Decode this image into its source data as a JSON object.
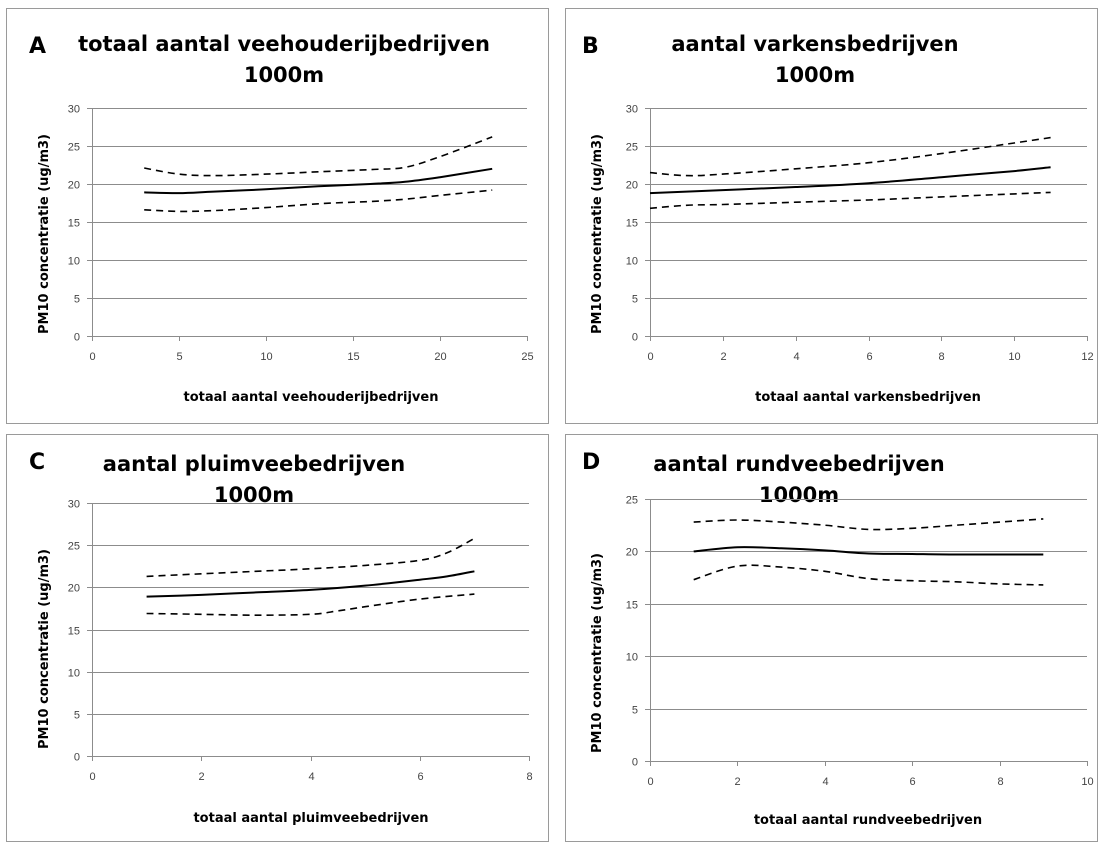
{
  "chart_data": [
    {
      "type": "line",
      "panel_label": "A",
      "title_lines": [
        "totaal aantal veehouderijbedrijven",
        "1000m"
      ],
      "xlabel": "totaal aantal veehouderijbedrijven",
      "ylabel": "PM10 concentratie (ug/m3)",
      "xlim": [
        0,
        25
      ],
      "xticks": [
        0,
        5,
        10,
        15,
        20,
        25
      ],
      "ylim": [
        0,
        30
      ],
      "yticks": [
        0,
        5,
        10,
        15,
        20,
        25,
        30
      ],
      "grid": true,
      "series": [
        {
          "style": "solid",
          "points": [
            [
              3,
              18.9
            ],
            [
              5,
              18.8
            ],
            [
              7,
              19.0
            ],
            [
              10,
              19.3
            ],
            [
              13,
              19.7
            ],
            [
              16,
              20.0
            ],
            [
              18,
              20.3
            ],
            [
              20,
              20.9
            ],
            [
              23,
              22.0
            ]
          ]
        },
        {
          "style": "dashed",
          "points": [
            [
              3,
              22.1
            ],
            [
              5,
              21.3
            ],
            [
              7,
              21.1
            ],
            [
              10,
              21.3
            ],
            [
              13,
              21.6
            ],
            [
              16,
              21.9
            ],
            [
              18,
              22.2
            ],
            [
              20,
              23.6
            ],
            [
              23,
              26.2
            ]
          ]
        },
        {
          "style": "dashed",
          "points": [
            [
              3,
              16.6
            ],
            [
              5,
              16.4
            ],
            [
              7,
              16.5
            ],
            [
              10,
              16.9
            ],
            [
              13,
              17.4
            ],
            [
              16,
              17.7
            ],
            [
              18,
              18.0
            ],
            [
              20,
              18.5
            ],
            [
              23,
              19.2
            ]
          ]
        }
      ]
    },
    {
      "type": "line",
      "panel_label": "B",
      "title_lines": [
        "aantal varkensbedrijven",
        "1000m"
      ],
      "xlabel": "totaal aantal varkensbedrijven",
      "ylabel": "PM10 concentratie (ug/m3)",
      "xlim": [
        0,
        12
      ],
      "xticks": [
        0,
        2,
        4,
        6,
        8,
        10,
        12
      ],
      "ylim": [
        0,
        30
      ],
      "yticks": [
        0,
        5,
        10,
        15,
        20,
        25,
        30
      ],
      "grid": true,
      "series": [
        {
          "style": "solid",
          "points": [
            [
              0,
              18.8
            ],
            [
              2,
              19.2
            ],
            [
              4,
              19.6
            ],
            [
              6,
              20.1
            ],
            [
              8,
              20.9
            ],
            [
              10,
              21.7
            ],
            [
              11,
              22.2
            ]
          ]
        },
        {
          "style": "dashed",
          "points": [
            [
              0,
              21.5
            ],
            [
              1,
              21.1
            ],
            [
              2,
              21.3
            ],
            [
              4,
              22.0
            ],
            [
              6,
              22.8
            ],
            [
              8,
              24.0
            ],
            [
              10,
              25.4
            ],
            [
              11,
              26.1
            ]
          ]
        },
        {
          "style": "dashed",
          "points": [
            [
              0,
              16.8
            ],
            [
              1,
              17.2
            ],
            [
              2,
              17.3
            ],
            [
              4,
              17.6
            ],
            [
              6,
              17.9
            ],
            [
              8,
              18.3
            ],
            [
              10,
              18.7
            ],
            [
              11,
              18.9
            ]
          ]
        }
      ]
    },
    {
      "type": "line",
      "panel_label": "C",
      "title_lines": [
        "aantal pluimveebedrijven",
        "1000m"
      ],
      "xlabel": "totaal aantal pluimveebedrijven",
      "ylabel": "PM10 concentratie (ug/m3)",
      "xlim": [
        0,
        8
      ],
      "xticks": [
        0,
        2,
        4,
        6,
        8
      ],
      "ylim": [
        0,
        30
      ],
      "yticks": [
        0,
        5,
        10,
        15,
        20,
        25,
        30
      ],
      "grid": true,
      "series": [
        {
          "style": "solid",
          "points": [
            [
              1,
              18.9
            ],
            [
              2,
              19.1
            ],
            [
              3,
              19.4
            ],
            [
              4,
              19.7
            ],
            [
              5,
              20.2
            ],
            [
              6,
              20.9
            ],
            [
              6.5,
              21.3
            ],
            [
              7,
              21.9
            ]
          ]
        },
        {
          "style": "dashed",
          "points": [
            [
              1,
              21.3
            ],
            [
              2,
              21.6
            ],
            [
              3,
              21.9
            ],
            [
              4,
              22.2
            ],
            [
              5,
              22.6
            ],
            [
              6,
              23.2
            ],
            [
              6.5,
              24.1
            ],
            [
              7,
              25.8
            ]
          ]
        },
        {
          "style": "dashed",
          "points": [
            [
              1,
              16.9
            ],
            [
              2,
              16.8
            ],
            [
              3,
              16.7
            ],
            [
              4,
              16.8
            ],
            [
              4.5,
              17.2
            ],
            [
              5,
              17.7
            ],
            [
              6,
              18.6
            ],
            [
              7,
              19.2
            ]
          ]
        }
      ]
    },
    {
      "type": "line",
      "panel_label": "D",
      "title_lines": [
        "aantal rundveebedrijven",
        "1000m"
      ],
      "xlabel": "totaal aantal rundveebedrijven",
      "ylabel": "PM10 concentratie (ug/m3)",
      "xlim": [
        0,
        10
      ],
      "xticks": [
        0,
        2,
        4,
        6,
        8,
        10
      ],
      "ylim": [
        0,
        25
      ],
      "yticks": [
        0,
        5,
        10,
        15,
        20,
        25
      ],
      "grid": true,
      "series": [
        {
          "style": "solid",
          "points": [
            [
              1,
              20.0
            ],
            [
              2,
              20.4
            ],
            [
              3,
              20.3
            ],
            [
              4,
              20.1
            ],
            [
              5,
              19.8
            ],
            [
              6,
              19.75
            ],
            [
              7,
              19.7
            ],
            [
              8,
              19.7
            ],
            [
              9,
              19.7
            ]
          ]
        },
        {
          "style": "dashed",
          "points": [
            [
              1,
              22.8
            ],
            [
              2,
              23.0
            ],
            [
              3,
              22.8
            ],
            [
              4,
              22.5
            ],
            [
              5,
              22.1
            ],
            [
              6,
              22.2
            ],
            [
              7,
              22.5
            ],
            [
              8,
              22.8
            ],
            [
              9,
              23.1
            ]
          ]
        },
        {
          "style": "dashed",
          "points": [
            [
              1,
              17.3
            ],
            [
              2,
              18.6
            ],
            [
              3,
              18.5
            ],
            [
              4,
              18.1
            ],
            [
              5,
              17.4
            ],
            [
              6,
              17.2
            ],
            [
              7,
              17.1
            ],
            [
              8,
              16.9
            ],
            [
              9,
              16.8
            ]
          ]
        }
      ]
    }
  ]
}
